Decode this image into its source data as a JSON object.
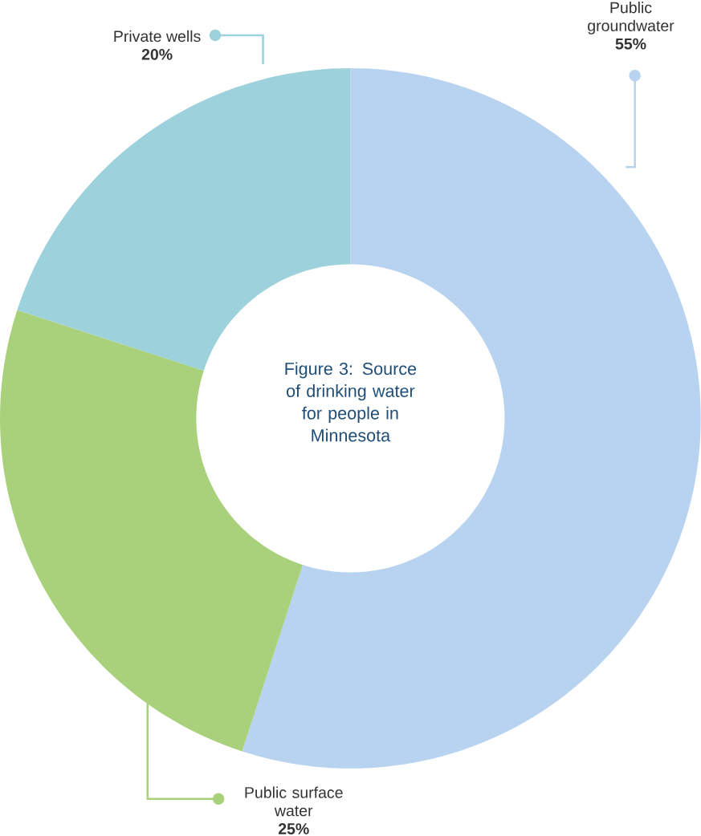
{
  "chart_data": {
    "type": "donut",
    "title": "Figure 3:  Source of drinking water for people in Minnesota",
    "categories": [
      "Public groundwater",
      "Public surface water",
      "Private wells"
    ],
    "values": [
      55,
      25,
      20
    ],
    "value_labels": [
      "55%",
      "25%",
      "20%"
    ],
    "colors": [
      "#b7d3ef",
      "#a9d17b",
      "#9dd1db"
    ]
  }
}
